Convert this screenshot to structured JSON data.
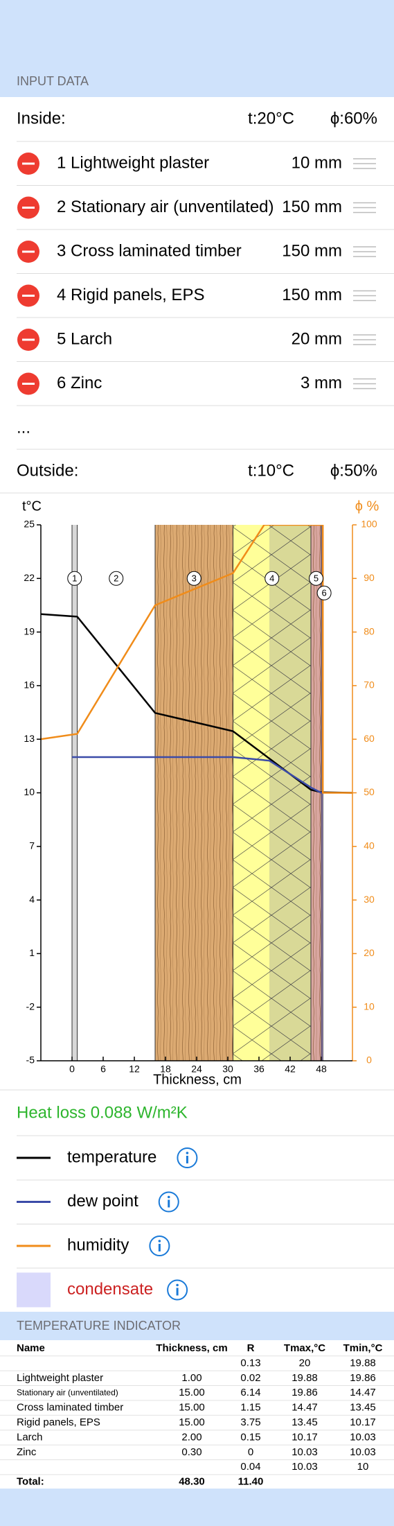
{
  "input_data": {
    "title": "INPUT DATA",
    "inside": {
      "label": "Inside:",
      "t": "t:20°C",
      "phi": "ϕ:60%"
    },
    "layers": [
      {
        "name": "1 Lightweight plaster",
        "thickness": "10 mm"
      },
      {
        "name": "2 Stationary air (unventilated)",
        "thickness": "150 mm"
      },
      {
        "name": "3 Cross laminated timber",
        "thickness": "150 mm"
      },
      {
        "name": "4 Rigid panels, EPS",
        "thickness": "150 mm"
      },
      {
        "name": "5 Larch",
        "thickness": "20 mm"
      },
      {
        "name": "6 Zinc",
        "thickness": "3 mm"
      }
    ],
    "more": "...",
    "outside": {
      "label": "Outside:",
      "t": "t:10°C",
      "phi": "ϕ:50%"
    }
  },
  "chart_data": {
    "type": "line",
    "y_label": "t°C",
    "y2_label": "ϕ %",
    "x_label": "Thickness, cm",
    "xlim": [
      -6,
      54
    ],
    "xticks": [
      0,
      6,
      12,
      18,
      24,
      30,
      36,
      42,
      48
    ],
    "ylim": [
      -5,
      25
    ],
    "yticks": [
      -5,
      -2,
      1,
      4,
      7,
      10,
      13,
      16,
      19,
      22,
      25
    ],
    "y2lim": [
      0,
      100
    ],
    "y2ticks": [
      0,
      10,
      20,
      30,
      40,
      50,
      60,
      70,
      80,
      90,
      100
    ],
    "bands": [
      {
        "label": "1",
        "x": [
          0,
          1
        ],
        "color": "#d8d8d8",
        "texture": "none"
      },
      {
        "label": "2",
        "x": [
          1,
          16
        ],
        "color": "#ffffff",
        "texture": "none"
      },
      {
        "label": "3",
        "x": [
          16,
          31
        ],
        "color": "#dcaa72",
        "texture": "wood"
      },
      {
        "label": "4",
        "x": [
          31,
          46
        ],
        "color": "#ffff99",
        "texture": "insulation"
      },
      {
        "label": "5",
        "x": [
          46,
          48
        ],
        "color": "#d9a6a0",
        "texture": "wood"
      },
      {
        "label": "6",
        "x": [
          48,
          48.3
        ],
        "color": "#a58cd6",
        "texture": "none"
      }
    ],
    "condensate": {
      "name": "condensate",
      "x": [
        38,
        46
      ],
      "color": "#d9d9fb",
      "text_color": "#cc2222"
    },
    "series": [
      {
        "name": "temperature",
        "color": "#000000",
        "axis": "y",
        "x": [
          -6,
          0,
          1,
          16,
          31,
          46,
          48,
          48.3,
          54
        ],
        "values": [
          20,
          19.88,
          19.86,
          14.47,
          13.45,
          10.17,
          10.03,
          10.03,
          10
        ]
      },
      {
        "name": "dew point",
        "color": "#3b4ba8",
        "axis": "y",
        "x": [
          0,
          31,
          38,
          46,
          48,
          48.3
        ],
        "values": [
          12,
          12,
          11.8,
          10.3,
          10,
          10
        ]
      },
      {
        "name": "humidity",
        "color": "#f08c1a",
        "axis": "y2",
        "x": [
          -6,
          1,
          16,
          31,
          37,
          48.3,
          48.3,
          54
        ],
        "values": [
          60,
          61,
          85,
          91,
          100,
          100,
          50,
          50
        ]
      }
    ]
  },
  "heat_loss": "Heat loss 0.088 W/m²K",
  "table": {
    "title": "TEMPERATURE INDICATOR",
    "header": [
      "Name",
      "Thickness, cm",
      "R",
      "Tmax,°C",
      "Tmin,°C"
    ],
    "rows": [
      [
        null,
        null,
        "0.13",
        "20",
        "19.88"
      ],
      [
        "Lightweight plaster",
        "1.00",
        "0.02",
        "19.88",
        "19.86"
      ],
      [
        "Stationary air (unventilated)",
        "15.00",
        "6.14",
        "19.86",
        "14.47"
      ],
      [
        "Cross laminated timber",
        "15.00",
        "1.15",
        "14.47",
        "13.45"
      ],
      [
        "Rigid panels, EPS",
        "15.00",
        "3.75",
        "13.45",
        "10.17"
      ],
      [
        "Larch",
        "2.00",
        "0.15",
        "10.17",
        "10.03"
      ],
      [
        "Zinc",
        "0.30",
        "0",
        "10.03",
        "10.03"
      ],
      [
        null,
        null,
        "0.04",
        "10.03",
        "10"
      ],
      [
        "Total:",
        "48.30",
        "11.40",
        null,
        null
      ]
    ]
  }
}
